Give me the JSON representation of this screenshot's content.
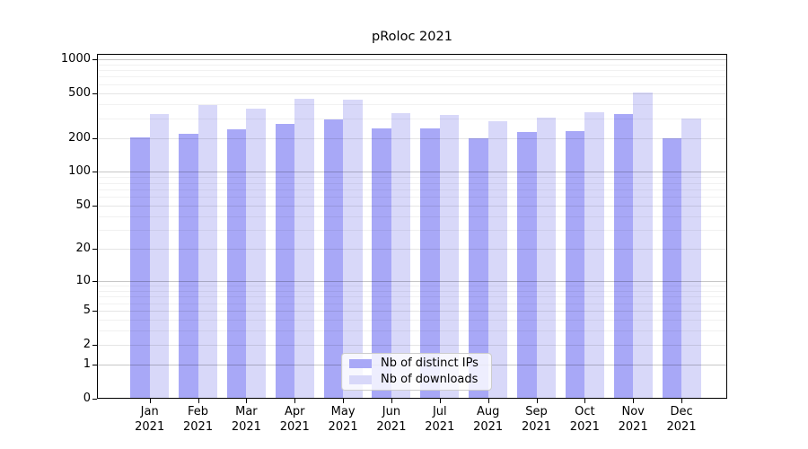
{
  "chart_data": {
    "type": "bar",
    "title": "pRoloc 2021",
    "year_label": "2021",
    "categories": [
      "Jan",
      "Feb",
      "Mar",
      "Apr",
      "May",
      "Jun",
      "Jul",
      "Aug",
      "Sep",
      "Oct",
      "Nov",
      "Dec"
    ],
    "series": [
      {
        "name": "Nb of distinct IPs",
        "color": "#a8a8f7",
        "values": [
          204,
          218,
          238,
          269,
          291,
          244,
          245,
          199,
          227,
          229,
          329,
          198
        ]
      },
      {
        "name": "Nb of downloads",
        "color": "#d8d8f9",
        "values": [
          327,
          393,
          367,
          446,
          441,
          335,
          321,
          283,
          306,
          339,
          510,
          298
        ]
      }
    ],
    "y_scale": "log10(value+1)",
    "ylim": [
      0,
      1000
    ],
    "y_ticks": [
      1000,
      500,
      200,
      100,
      50,
      20,
      10,
      5,
      2,
      1,
      0
    ],
    "y_major_gridlines": [
      1000,
      100,
      10,
      1
    ],
    "y_mid_gridlines": [
      500,
      200,
      50,
      20,
      5,
      2
    ],
    "y_minor_gridlines": [
      900,
      800,
      700,
      600,
      400,
      300,
      90,
      80,
      70,
      60,
      40,
      30,
      9,
      8,
      7,
      6,
      4,
      3
    ],
    "grid": true,
    "grid_above_bars": true,
    "legend_position": "lower center",
    "background_color": "#ffffff",
    "frame_color": "#000000"
  }
}
